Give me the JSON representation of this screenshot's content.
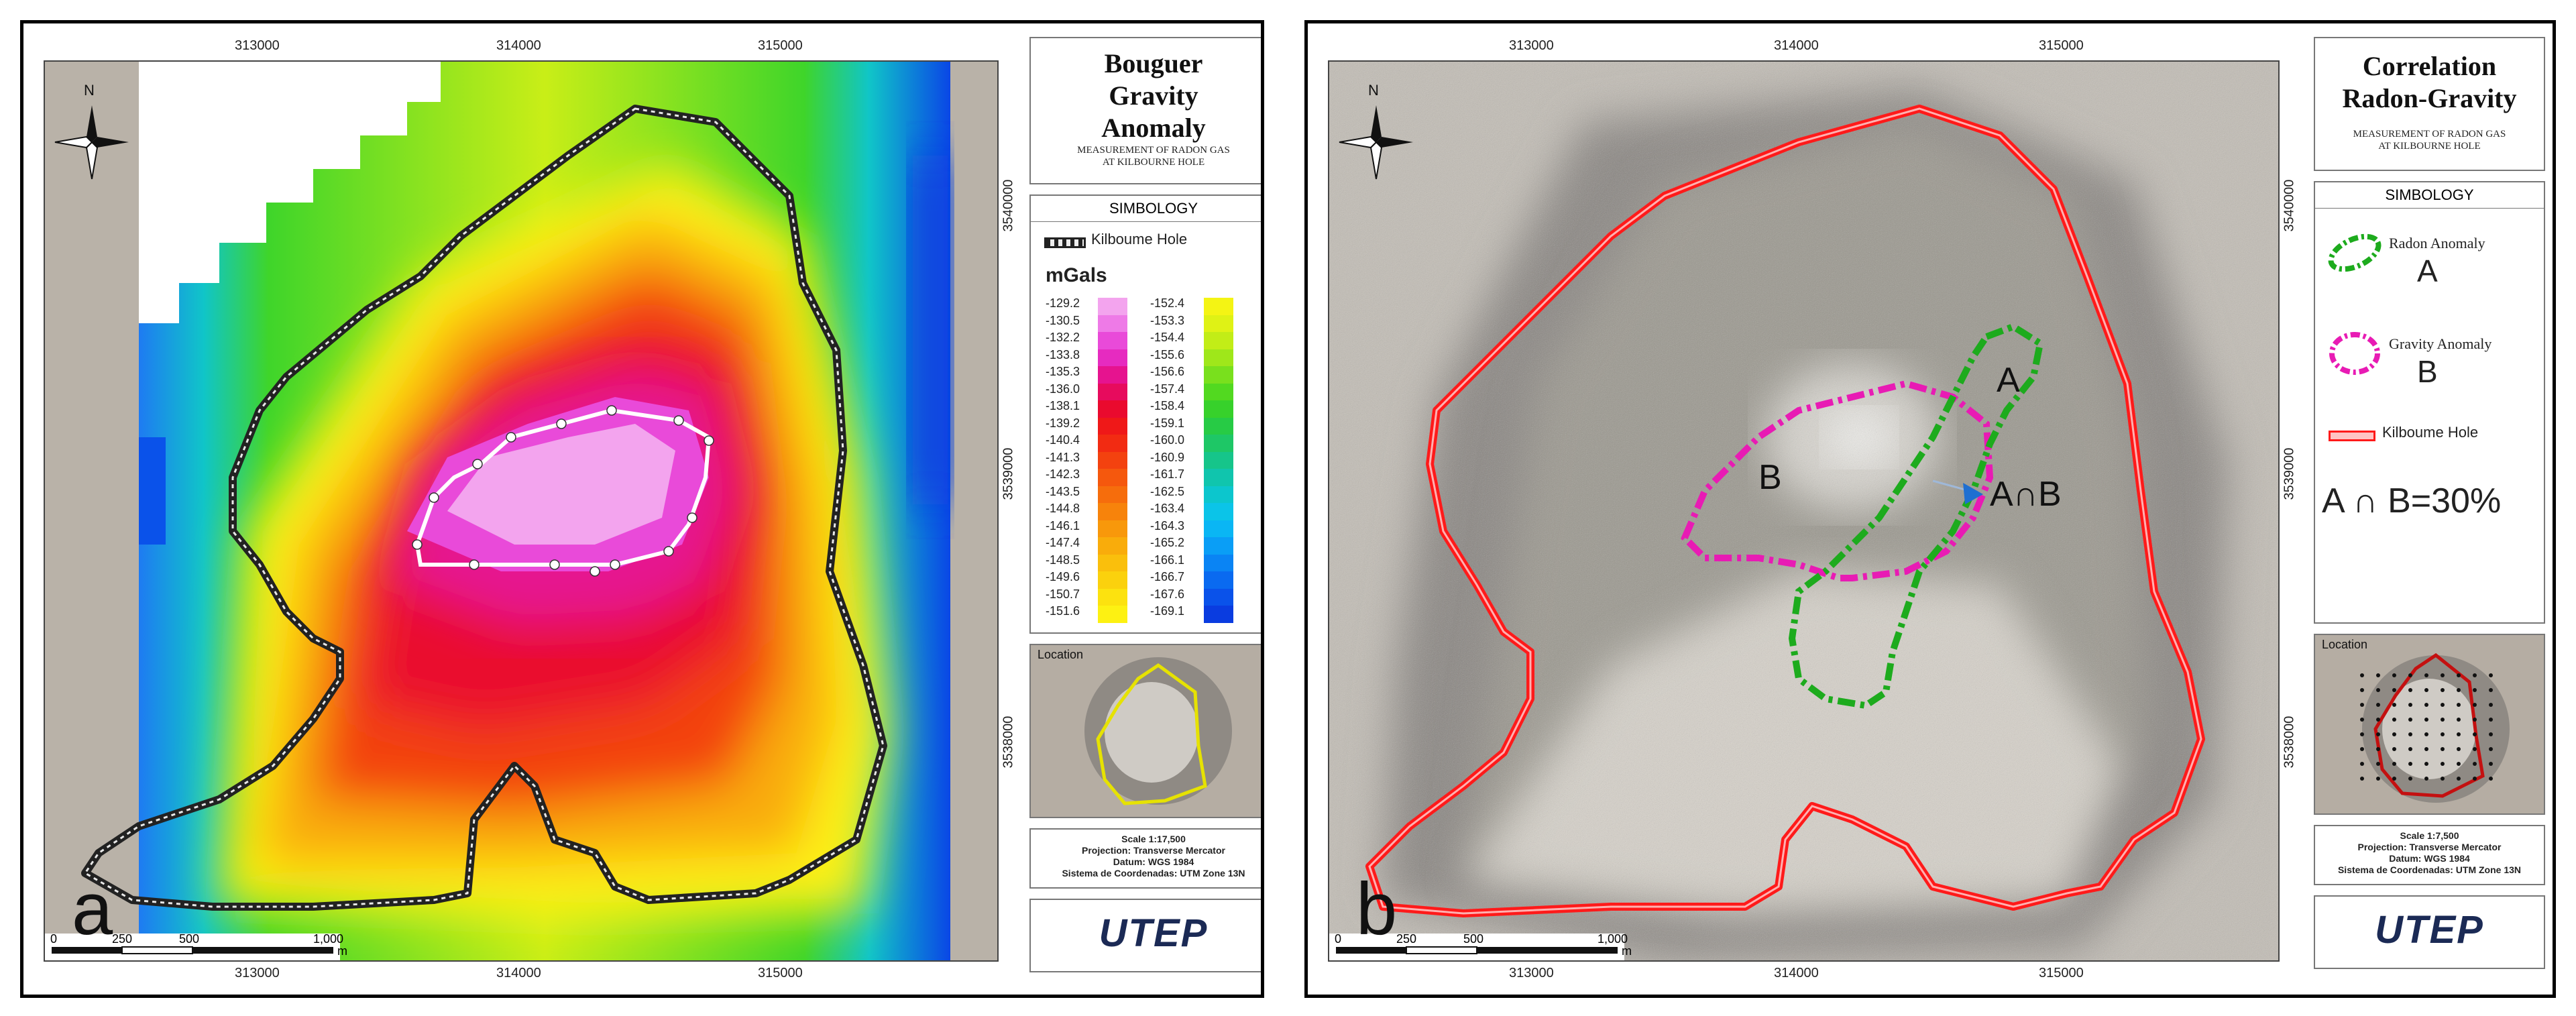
{
  "panel_a": {
    "letter": "a",
    "title_line1": "Bouguer",
    "title_line2": "Gravity",
    "title_line3": "Anomaly",
    "subtitle_line1": "MEASUREMENT OF RADON GAS",
    "subtitle_line2": "AT KILBOURNE HOLE",
    "simbology": "SIMBOLOGY",
    "legend_outline": "Kilboume Hole",
    "units": "mGals",
    "color_scale_left": [
      "-129.2",
      "-130.5",
      "-132.2",
      "-133.8",
      "-135.3",
      "-136.0",
      "-138.1",
      "-139.2",
      "-140.4",
      "-141.3",
      "-142.3",
      "-143.5",
      "-144.8",
      "-146.1",
      "-147.4",
      "-148.5",
      "-149.6",
      "-150.7",
      "-151.6"
    ],
    "color_scale_right": [
      "-152.4",
      "-153.3",
      "-154.4",
      "-155.6",
      "-156.6",
      "-157.4",
      "-158.4",
      "-159.1",
      "-160.0",
      "-160.9",
      "-161.7",
      "-162.5",
      "-163.4",
      "-164.3",
      "-165.2",
      "-166.1",
      "-166.7",
      "-167.6",
      "-169.1"
    ],
    "colors_left": [
      "#f3a4ee",
      "#ee7ae7",
      "#e94ad9",
      "#e62bc0",
      "#e6138f",
      "#e70b5d",
      "#ea0a2e",
      "#ef1818",
      "#f22b12",
      "#f3420f",
      "#f5580d",
      "#f66d0c",
      "#f7830b",
      "#f8980b",
      "#f9ac0b",
      "#fabf0c",
      "#fbd10d",
      "#fce20f",
      "#fdf112"
    ],
    "colors_right": [
      "#f4f414",
      "#dff215",
      "#c2ed17",
      "#9fe71a",
      "#79e01d",
      "#52d920",
      "#37d12b",
      "#27cb45",
      "#1ec766",
      "#16c58a",
      "#10c5ad",
      "#0cc6cd",
      "#0bc4e8",
      "#0ab6f4",
      "#0a9ef6",
      "#0a84f4",
      "#0a6af0",
      "#0a52ea",
      "#0a3ce0"
    ],
    "location_label": "Location",
    "scale_lines": [
      "Scale 1:17,500",
      "Projection: Transverse Mercator",
      "Datum: WGS 1984",
      "Sistema de Coordenadas: UTM Zone 13N"
    ],
    "scalebar_labels": [
      "0",
      "250",
      "500",
      "1,000"
    ],
    "scalebar_unit": "m",
    "x_ticks": [
      "313000",
      "314000",
      "315000"
    ],
    "y_ticks": [
      "3540000",
      "3539000",
      "3538000"
    ],
    "logo": "UTEP"
  },
  "panel_b": {
    "letter": "b",
    "title_line1": "Correlation",
    "title_line2": "Radon-Gravity",
    "subtitle_line1": "MEASUREMENT OF RADON GAS",
    "subtitle_line2": "AT KILBOURNE HOLE",
    "simbology": "SIMBOLOGY",
    "legend_radon": "Radon Anomaly",
    "legend_radon_letter": "A",
    "legend_gravity": "Gravity Anomaly",
    "legend_gravity_letter": "B",
    "legend_outline": "Kilboume Hole",
    "intersection_text": "A ∩ B=30%",
    "map_label_a": "A",
    "map_label_b": "B",
    "map_label_ab": "A∩B",
    "location_label": "Location",
    "scale_lines": [
      "Scale 1:7,500",
      "Projection: Transverse Mercator",
      "Datum: WGS 1984",
      "Sistema de Coordenadas: UTM Zone 13N"
    ],
    "scalebar_labels": [
      "0",
      "250",
      "500",
      "1,000"
    ],
    "scalebar_unit": "m",
    "x_ticks": [
      "313000",
      "314000",
      "315000"
    ],
    "y_ticks": [
      "3540000",
      "3539000",
      "3538000"
    ],
    "logo": "UTEP"
  },
  "north_label": "N"
}
